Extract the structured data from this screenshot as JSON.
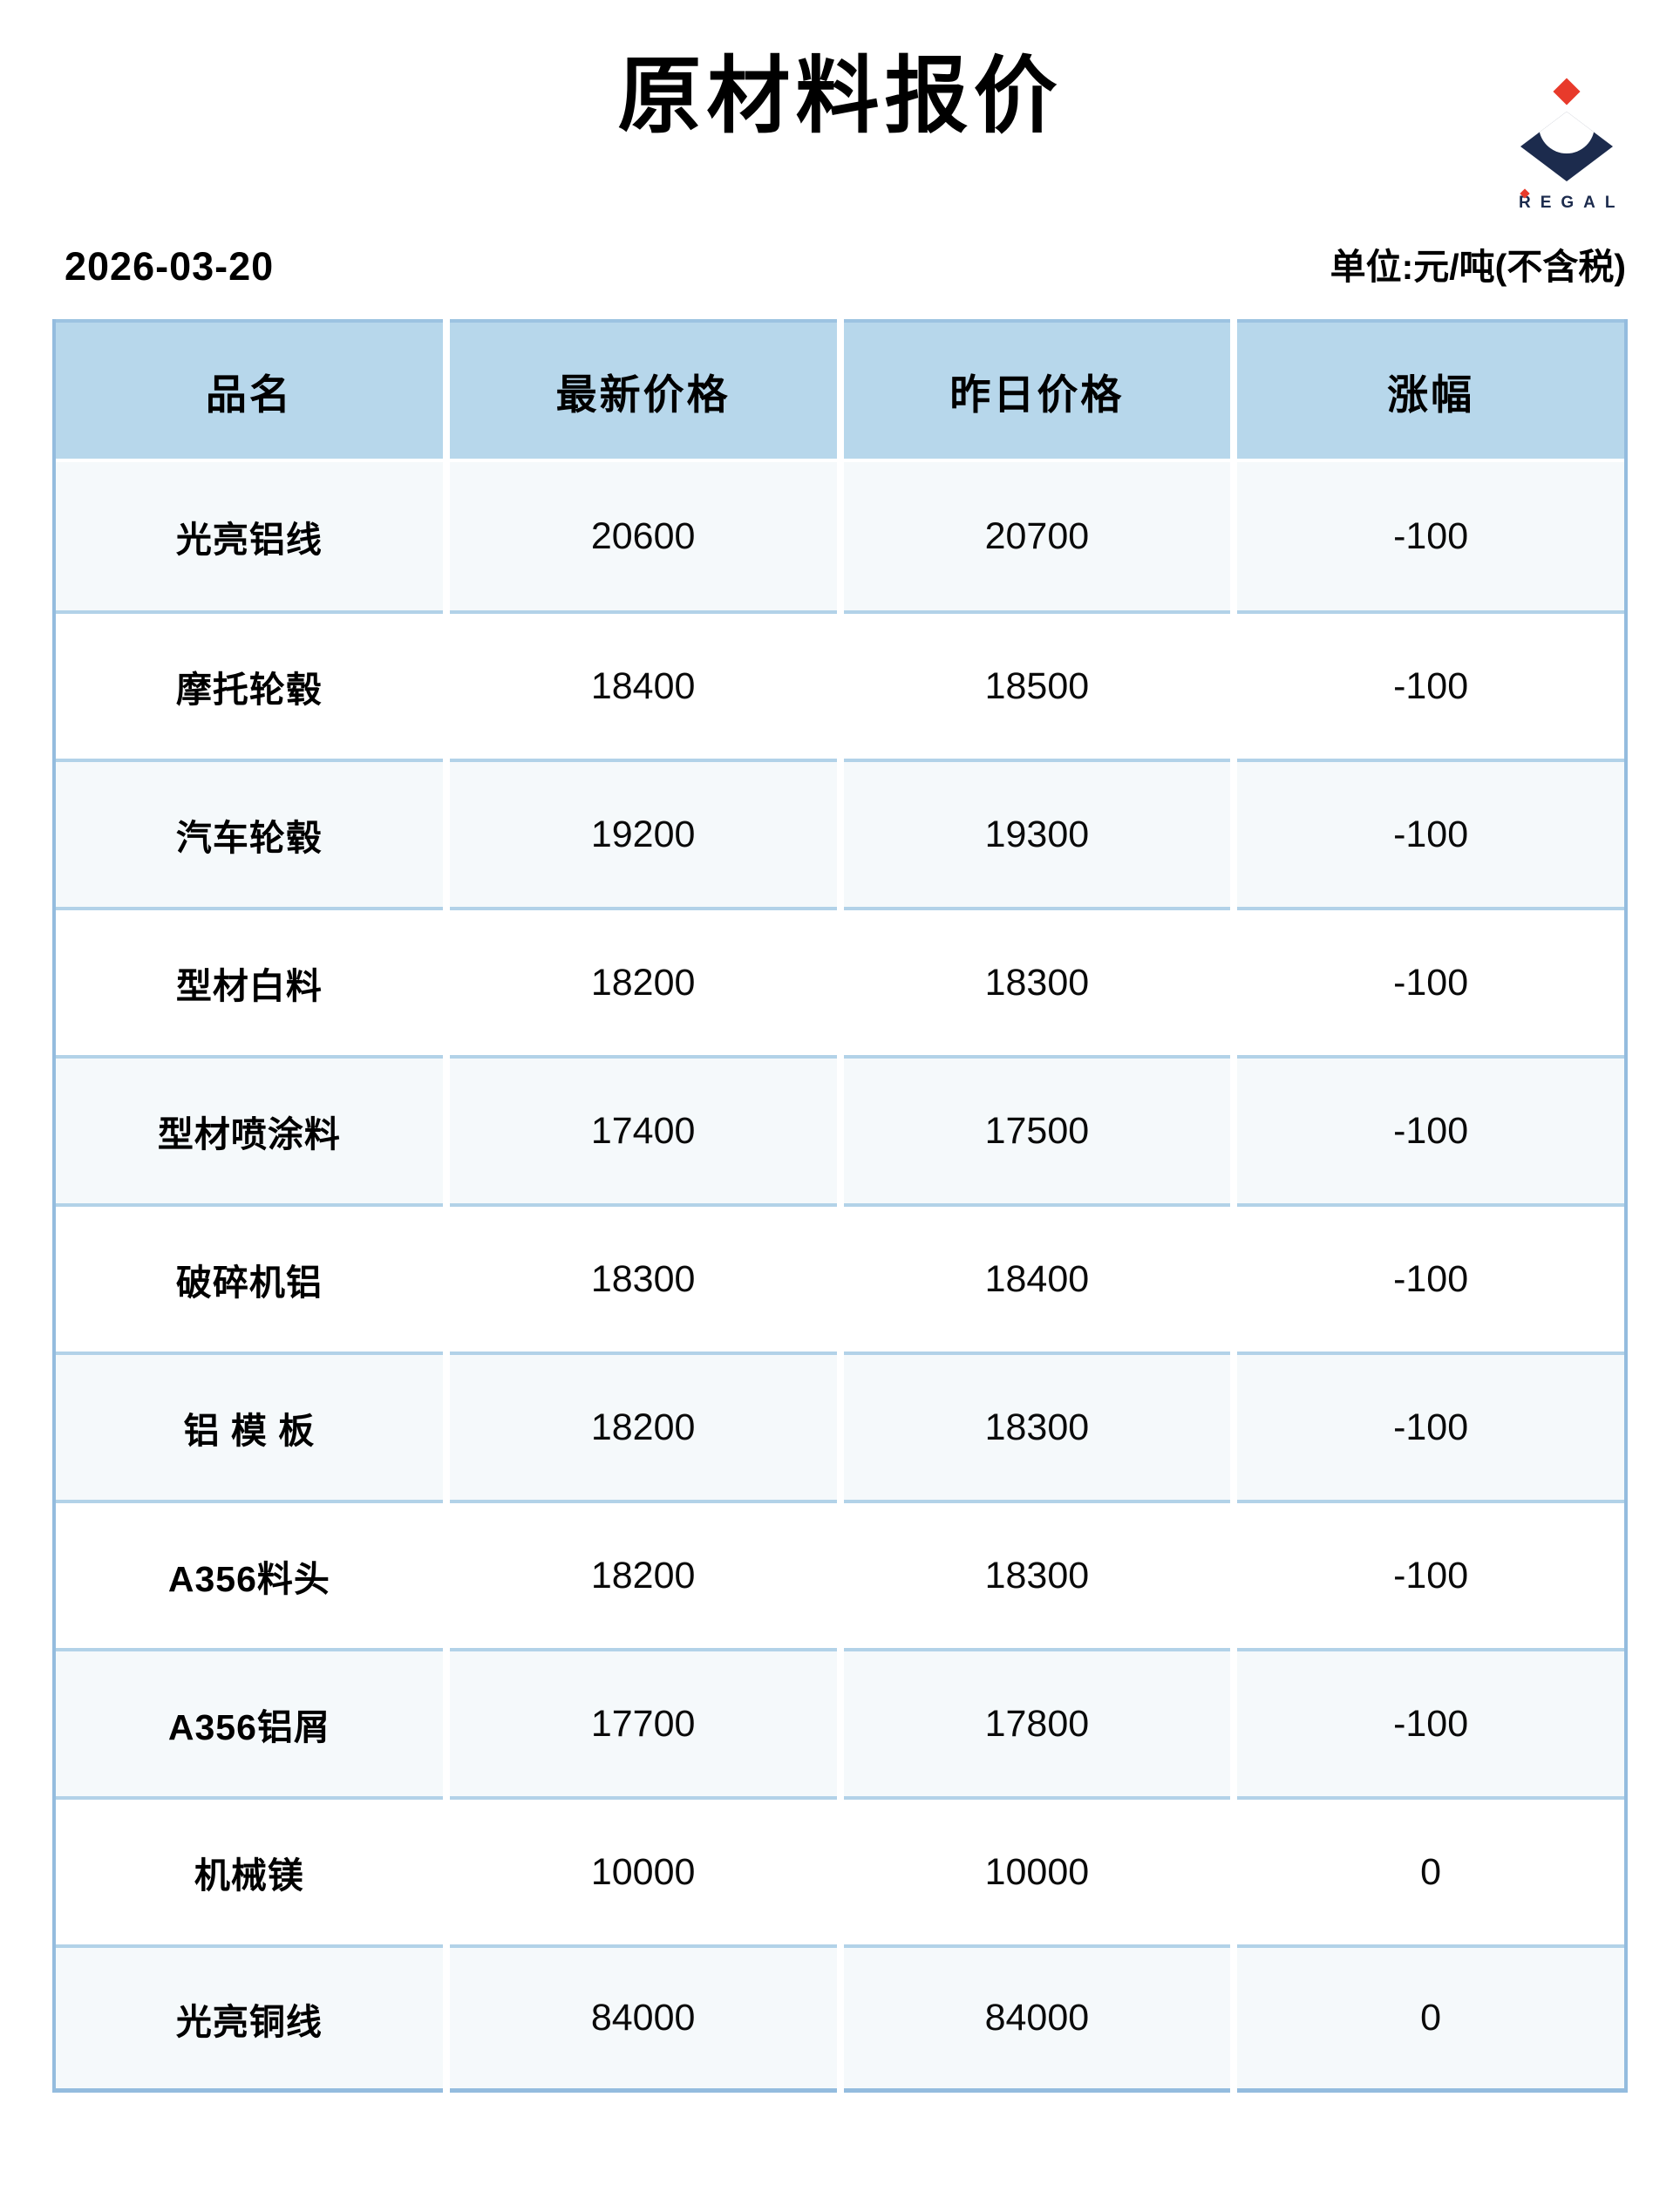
{
  "page": {
    "title": "原材料报价",
    "date": "2026-03-20",
    "unit_label": "单位:元/吨(不含税)",
    "logo_text": "REGAL"
  },
  "colors": {
    "logo_navy": "#1c2b4d",
    "logo_red": "#e83a2b",
    "header_blue": "#b7d7eb",
    "row_light_blue": "#f5f9fb",
    "row_white": "#ffffff",
    "separator_blue": "#b2d2e8",
    "outer_border_blue": "#94bcde"
  },
  "table": {
    "columns": [
      "品名",
      "最新价格",
      "昨日价格",
      "涨幅"
    ],
    "rows": [
      {
        "name": "光亮铝线",
        "latest": "20600",
        "yesterday": "20700",
        "change": "-100"
      },
      {
        "name": "摩托轮毂",
        "latest": "18400",
        "yesterday": "18500",
        "change": "-100"
      },
      {
        "name": "汽车轮毂",
        "latest": "19200",
        "yesterday": "19300",
        "change": "-100"
      },
      {
        "name": "型材白料",
        "latest": "18200",
        "yesterday": "18300",
        "change": "-100"
      },
      {
        "name": "型材喷涂料",
        "latest": "17400",
        "yesterday": "17500",
        "change": "-100"
      },
      {
        "name": "破碎机铝",
        "latest": "18300",
        "yesterday": "18400",
        "change": "-100"
      },
      {
        "name": "铝 模 板",
        "latest": "18200",
        "yesterday": "18300",
        "change": "-100"
      },
      {
        "name": "A356料头",
        "latest": "18200",
        "yesterday": "18300",
        "change": "-100"
      },
      {
        "name": "A356铝屑",
        "latest": "17700",
        "yesterday": "17800",
        "change": "-100"
      },
      {
        "name": "机械镁",
        "latest": "10000",
        "yesterday": "10000",
        "change": "0"
      },
      {
        "name": "光亮铜线",
        "latest": "84000",
        "yesterday": "84000",
        "change": "0"
      }
    ]
  }
}
